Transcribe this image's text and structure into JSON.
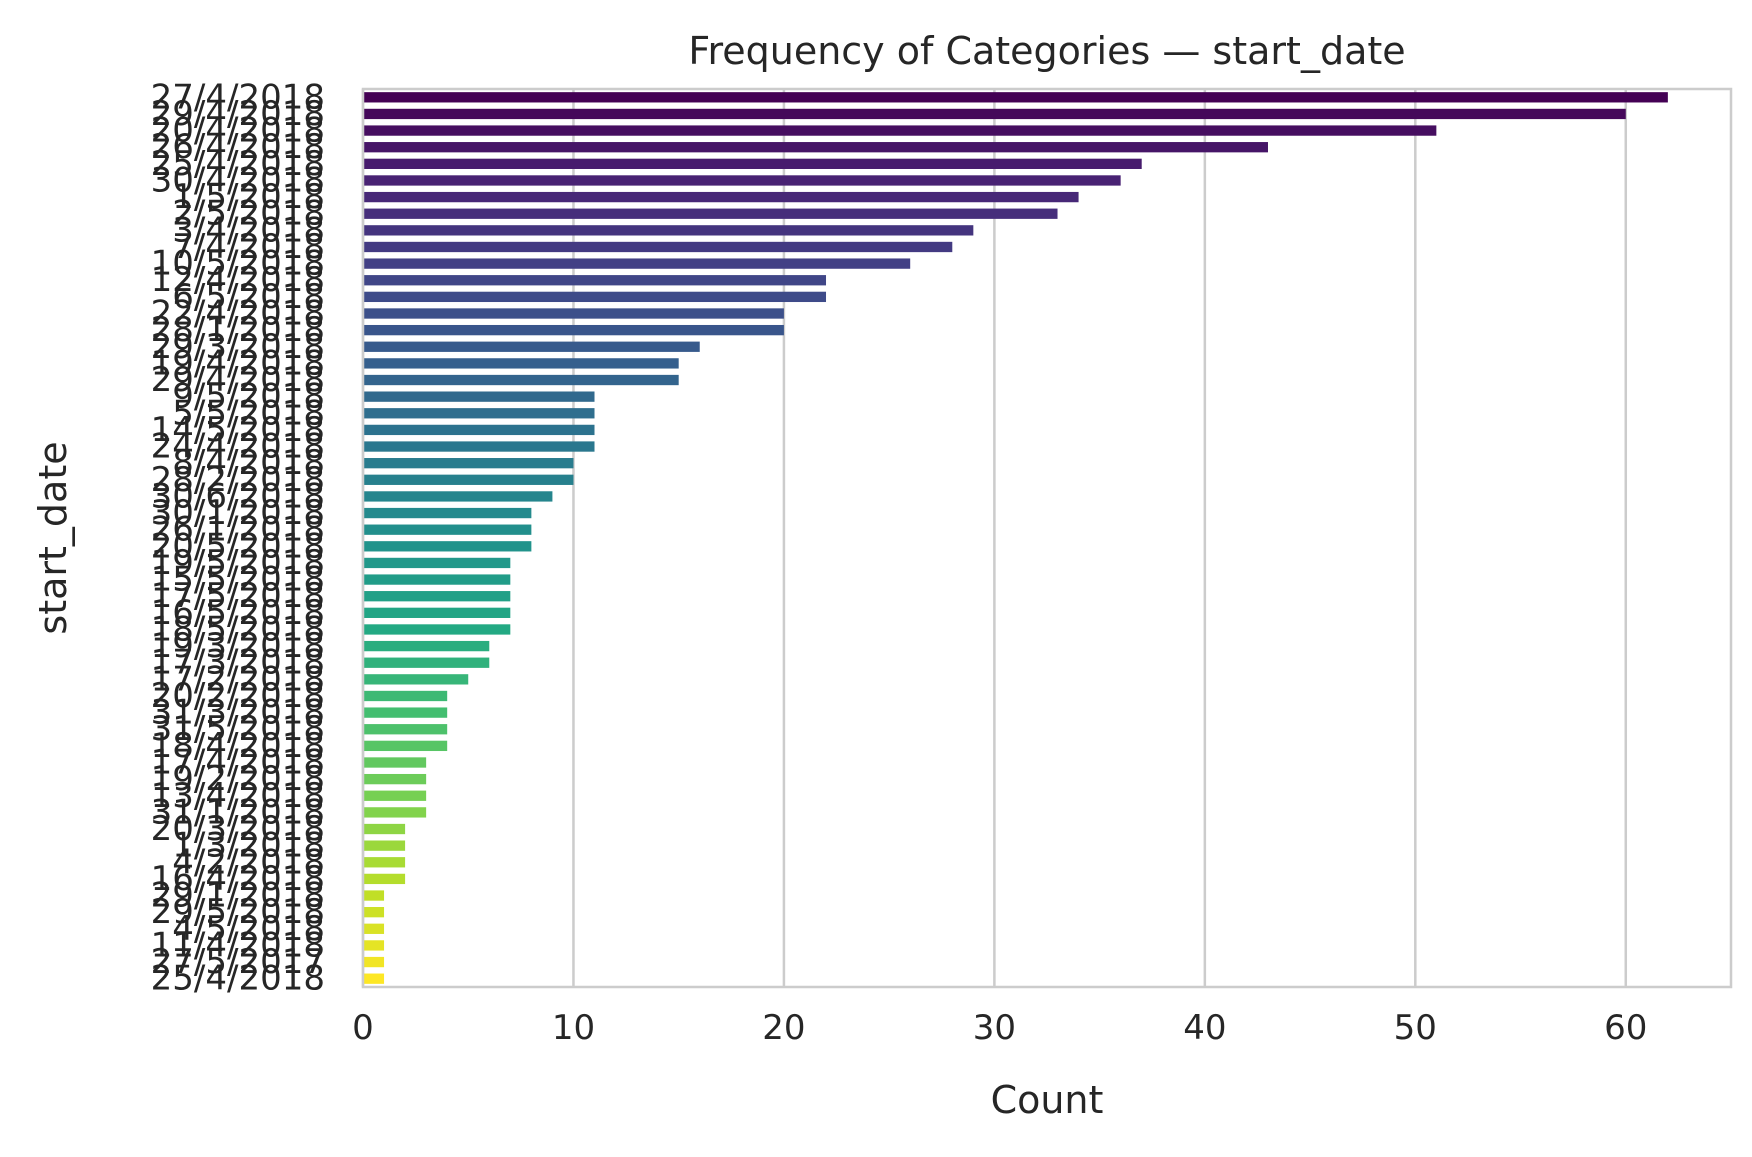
{
  "chart_data": {
    "type": "bar",
    "orientation": "horizontal",
    "title": "Frequency of Categories — start_date",
    "xlabel": "Count",
    "ylabel": "start_date",
    "xlim": [
      0,
      65
    ],
    "xticks": [
      0,
      10,
      20,
      30,
      40,
      50,
      60
    ],
    "grid": "vertical",
    "palette": "viridis",
    "categories": [
      "27/4/2018",
      "29/4/2018",
      "20/4/2018",
      "26/4/2018",
      "25/4/2018",
      "30/4/2018",
      "1/5/2018",
      "2/5/2018",
      "3/4/2018",
      "7/4/2018",
      "10/5/2018",
      "12/4/2018",
      "6/5/2018",
      "22/4/2018",
      "28/1/2018",
      "29/3/2018",
      "19/4/2018",
      "29/4/2018",
      "9/5/2018",
      "5/5/2018",
      "14/5/2018",
      "24/4/2018",
      "8/4/2018",
      "28/2/2018",
      "30/6/2018",
      "30/1/2018",
      "26/1/2018",
      "20/5/2018",
      "19/5/2018",
      "15/5/2018",
      "17/5/2018",
      "16/5/2018",
      "18/5/2018",
      "19/3/2018",
      "17/3/2018",
      "17/2/2018",
      "20/2/2018",
      "31/3/2018",
      "31/5/2018",
      "18/4/2018",
      "17/4/2018",
      "19/2/2018",
      "13/4/2018",
      "31/1/2018",
      "20/3/2018",
      "1/3/2018",
      "4/2/2018",
      "16/4/2018",
      "29/1/2018",
      "29/5/2018",
      "4/5/2018",
      "11/4/2018",
      "27/5/2017",
      "25/4/2018"
    ],
    "values": [
      62,
      60,
      51,
      43,
      37,
      36,
      34,
      33,
      29,
      28,
      26,
      22,
      22,
      20,
      20,
      16,
      15,
      15,
      11,
      11,
      11,
      11,
      10,
      10,
      9,
      8,
      8,
      8,
      7,
      7,
      7,
      7,
      7,
      6,
      6,
      5,
      4,
      4,
      4,
      4,
      3,
      3,
      3,
      3,
      2,
      2,
      2,
      2,
      1,
      1,
      1,
      1,
      1,
      1
    ]
  }
}
